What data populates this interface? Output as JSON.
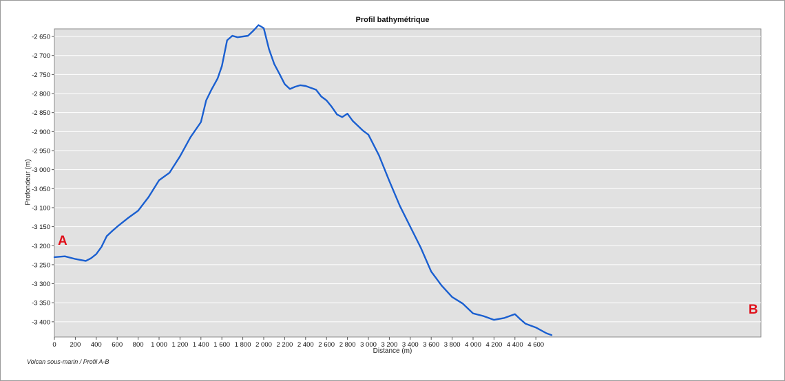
{
  "chart_data": {
    "type": "line",
    "title": "Profil bathymétrique",
    "xlabel": "Distance (m)",
    "ylabel": "Profondeur (m)",
    "caption": "Volcan sous-marin / Profil A-B",
    "xlim": [
      0,
      6750
    ],
    "ylim": [
      -3440,
      -2630
    ],
    "grid": true,
    "x_ticks": [
      0,
      200,
      400,
      600,
      800,
      1000,
      1200,
      1400,
      1600,
      1800,
      2000,
      2200,
      2400,
      2600,
      2800,
      3000,
      3200,
      3400,
      3600,
      3800,
      4000,
      4200,
      4400,
      4600
    ],
    "x_tick_labels": [
      "0",
      "200",
      "400",
      "600",
      "800",
      "1 000",
      "1 200",
      "1 400",
      "1 600",
      "1 800",
      "2 000",
      "2 200",
      "2 400",
      "2 600",
      "2 800",
      "3 000",
      "3 200",
      "3 400",
      "3 600",
      "3 800",
      "4 000",
      "4 200",
      "4 400",
      "4 600"
    ],
    "y_ticks": [
      -2650,
      -2700,
      -2750,
      -2800,
      -2850,
      -2900,
      -2950,
      -3000,
      -3050,
      -3100,
      -3150,
      -3200,
      -3250,
      -3300,
      -3350,
      -3400
    ],
    "y_tick_labels": [
      "-2 650",
      "-2 700",
      "-2 750",
      "-2 800",
      "-2 850",
      "-2 900",
      "-2 950",
      "-3 000",
      "-3 050",
      "-3 100",
      "-3 150",
      "-3 200",
      "-3 250",
      "-3 300",
      "-3 350",
      "-3 400"
    ],
    "series": [
      {
        "color": "#1a5fd0",
        "x": [
          0,
          100,
          200,
          300,
          350,
          400,
          450,
          500,
          550,
          600,
          700,
          800,
          900,
          1000,
          1100,
          1200,
          1300,
          1400,
          1450,
          1500,
          1560,
          1600,
          1650,
          1700,
          1750,
          1850,
          1900,
          1950,
          2000,
          2050,
          2100,
          2150,
          2200,
          2250,
          2300,
          2350,
          2400,
          2450,
          2500,
          2550,
          2600,
          2650,
          2700,
          2750,
          2800,
          2850,
          2900,
          2950,
          3000,
          3050,
          3100,
          3200,
          3300,
          3400,
          3500,
          3600,
          3700,
          3800,
          3900,
          4000,
          4100,
          4200,
          4300,
          4400,
          4450,
          4500,
          4600,
          4700,
          4750
        ],
        "y": [
          -3230,
          -3228,
          -3235,
          -3240,
          -3233,
          -3222,
          -3203,
          -3175,
          -3162,
          -3150,
          -3128,
          -3108,
          -3072,
          -3028,
          -3008,
          -2965,
          -2915,
          -2875,
          -2818,
          -2790,
          -2760,
          -2728,
          -2660,
          -2648,
          -2652,
          -2648,
          -2635,
          -2620,
          -2628,
          -2683,
          -2722,
          -2748,
          -2775,
          -2788,
          -2782,
          -2778,
          -2780,
          -2785,
          -2790,
          -2808,
          -2818,
          -2835,
          -2855,
          -2862,
          -2853,
          -2872,
          -2885,
          -2898,
          -2908,
          -2935,
          -2962,
          -3030,
          -3095,
          -3150,
          -3205,
          -3268,
          -3305,
          -3335,
          -3352,
          -3378,
          -3385,
          -3395,
          -3390,
          -3380,
          -3393,
          -3405,
          -3415,
          -3430,
          -3435
        ]
      }
    ],
    "endpoints": {
      "start": "A",
      "end": "B"
    }
  }
}
